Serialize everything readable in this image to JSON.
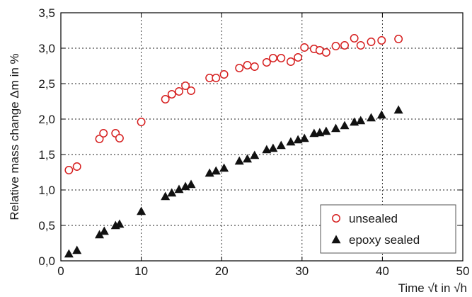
{
  "chart_data": {
    "type": "scatter",
    "xlabel": "Time √t in √h",
    "ylabel": "Relative mass change Δm in %",
    "xlim": [
      0,
      50
    ],
    "ylim": [
      0,
      3.5
    ],
    "x_ticks": [
      "0",
      "10",
      "20",
      "30",
      "40",
      "50"
    ],
    "y_ticks": [
      "0,0",
      "0,5",
      "1,0",
      "1,5",
      "2,0",
      "2,5",
      "3,0",
      "3,5"
    ],
    "grid": true,
    "legend_position": "bottom-right",
    "series": [
      {
        "name": "unsealed",
        "marker": "open-circle",
        "color": "#d62020",
        "points": [
          [
            1.0,
            1.28
          ],
          [
            2.0,
            1.33
          ],
          [
            4.8,
            1.72
          ],
          [
            5.3,
            1.8
          ],
          [
            6.8,
            1.8
          ],
          [
            7.3,
            1.73
          ],
          [
            10.0,
            1.96
          ],
          [
            13.0,
            2.28
          ],
          [
            13.8,
            2.35
          ],
          [
            14.7,
            2.39
          ],
          [
            15.5,
            2.47
          ],
          [
            16.2,
            2.4
          ],
          [
            18.5,
            2.58
          ],
          [
            19.3,
            2.58
          ],
          [
            20.3,
            2.63
          ],
          [
            22.2,
            2.72
          ],
          [
            23.2,
            2.76
          ],
          [
            24.1,
            2.74
          ],
          [
            25.6,
            2.8
          ],
          [
            26.4,
            2.86
          ],
          [
            27.4,
            2.86
          ],
          [
            28.6,
            2.81
          ],
          [
            29.5,
            2.87
          ],
          [
            30.3,
            3.01
          ],
          [
            31.5,
            2.99
          ],
          [
            32.2,
            2.97
          ],
          [
            33.0,
            2.94
          ],
          [
            34.2,
            3.03
          ],
          [
            35.3,
            3.04
          ],
          [
            36.5,
            3.14
          ],
          [
            37.3,
            3.04
          ],
          [
            38.6,
            3.09
          ],
          [
            39.9,
            3.11
          ],
          [
            42.0,
            3.13
          ]
        ]
      },
      {
        "name": "epoxy sealed",
        "marker": "filled-triangle",
        "color": "#111111",
        "points": [
          [
            1.0,
            0.1
          ],
          [
            2.0,
            0.15
          ],
          [
            4.8,
            0.37
          ],
          [
            5.4,
            0.42
          ],
          [
            6.8,
            0.5
          ],
          [
            7.3,
            0.52
          ],
          [
            10.0,
            0.7
          ],
          [
            13.0,
            0.91
          ],
          [
            13.8,
            0.96
          ],
          [
            14.7,
            1.01
          ],
          [
            15.5,
            1.05
          ],
          [
            16.2,
            1.08
          ],
          [
            18.5,
            1.24
          ],
          [
            19.3,
            1.27
          ],
          [
            20.3,
            1.31
          ],
          [
            22.2,
            1.41
          ],
          [
            23.2,
            1.44
          ],
          [
            24.1,
            1.49
          ],
          [
            25.6,
            1.57
          ],
          [
            26.4,
            1.59
          ],
          [
            27.4,
            1.63
          ],
          [
            28.6,
            1.68
          ],
          [
            29.5,
            1.71
          ],
          [
            30.3,
            1.73
          ],
          [
            31.5,
            1.8
          ],
          [
            32.2,
            1.81
          ],
          [
            33.0,
            1.83
          ],
          [
            34.2,
            1.87
          ],
          [
            35.3,
            1.91
          ],
          [
            36.5,
            1.96
          ],
          [
            37.3,
            1.98
          ],
          [
            38.6,
            2.02
          ],
          [
            39.9,
            2.06
          ],
          [
            42.0,
            2.13
          ]
        ]
      }
    ]
  }
}
